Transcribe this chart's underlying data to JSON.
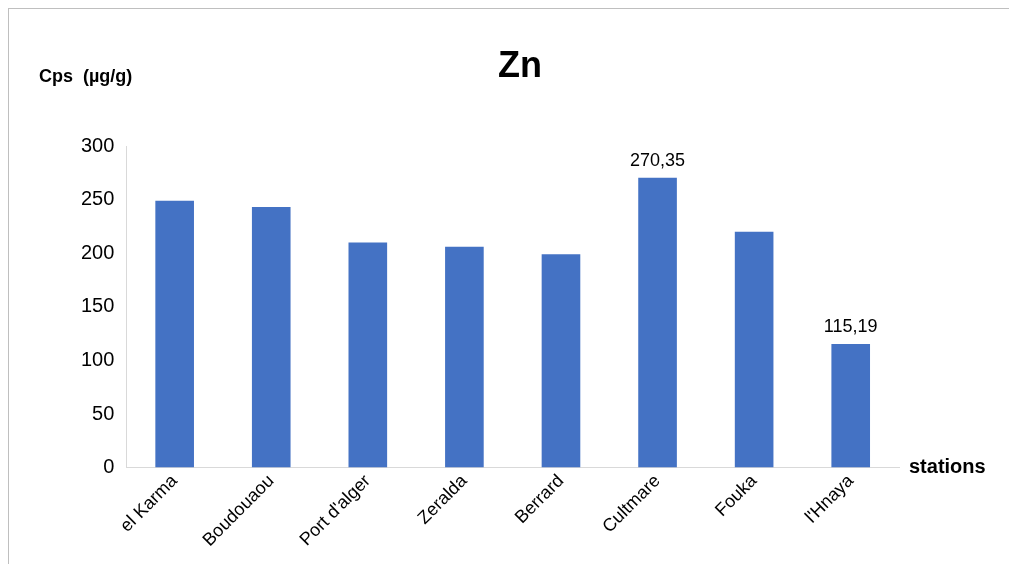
{
  "chart_data": {
    "type": "bar",
    "title": "Zn",
    "ylabel": "Cps  (µg/g)",
    "xlabel": "stations",
    "categories": [
      "el Karma",
      "Boudouaou",
      "Port d'alger",
      "Zeralda",
      "Berrard",
      "Cultmare",
      "Fouka",
      "l'Hnaya"
    ],
    "values": [
      249,
      243,
      210,
      206,
      199,
      270.35,
      220,
      115.19
    ],
    "value_labels": [
      null,
      null,
      null,
      null,
      null,
      "270,35",
      null,
      "115,19"
    ],
    "color": "#4472c4",
    "ylim": [
      0,
      300
    ],
    "yticks": [
      0,
      50,
      100,
      150,
      200,
      250,
      300
    ],
    "grid": false,
    "legend": false
  }
}
